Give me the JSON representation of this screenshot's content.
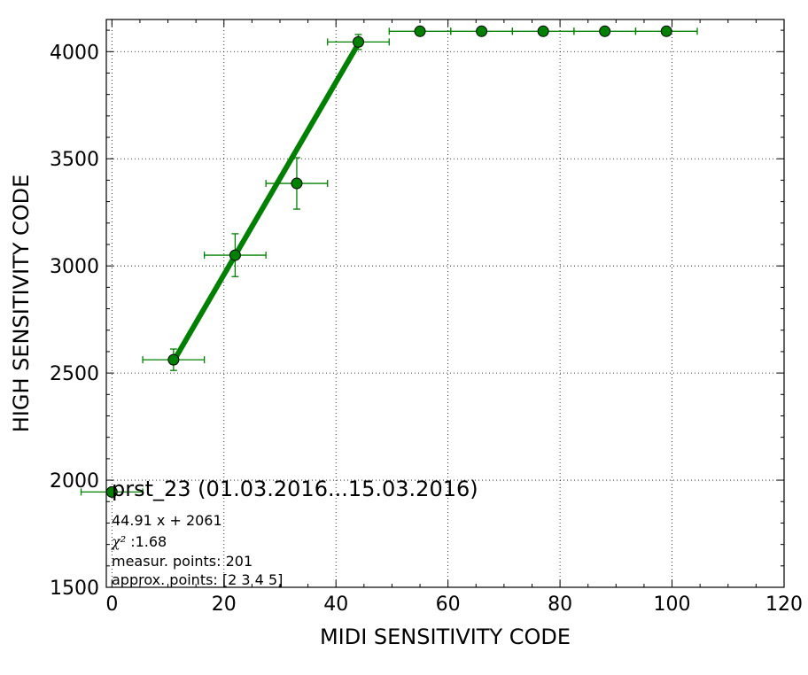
{
  "chart_data": {
    "type": "scatter",
    "xlabel": "MIDI SENSITIVITY CODE",
    "ylabel": "HIGH SENSITIVITY CODE",
    "xlim": [
      -1,
      120
    ],
    "ylim": [
      1500,
      4150
    ],
    "xticks": [
      0,
      20,
      40,
      60,
      80,
      100,
      120
    ],
    "yticks": [
      1500,
      2000,
      2500,
      3000,
      3500,
      4000
    ],
    "grid": true,
    "color": "#008000",
    "points": [
      {
        "x": 0,
        "y": 1945,
        "xerr": 5.5,
        "yerr": 0
      },
      {
        "x": 11,
        "y": 2562,
        "xerr": 5.5,
        "yerr": 50
      },
      {
        "x": 22,
        "y": 3050,
        "xerr": 5.5,
        "yerr": 100
      },
      {
        "x": 33,
        "y": 3385,
        "xerr": 5.5,
        "yerr": 120
      },
      {
        "x": 44,
        "y": 4045,
        "xerr": 5.5,
        "yerr": 35
      },
      {
        "x": 55,
        "y": 4095,
        "xerr": 5.5,
        "yerr": 0
      },
      {
        "x": 66,
        "y": 4095,
        "xerr": 5.5,
        "yerr": 0
      },
      {
        "x": 77,
        "y": 4095,
        "xerr": 5.5,
        "yerr": 0
      },
      {
        "x": 88,
        "y": 4095,
        "xerr": 5.5,
        "yerr": 0
      },
      {
        "x": 99,
        "y": 4095,
        "xerr": 5.5,
        "yerr": 0
      }
    ],
    "fit_line": {
      "slope": 44.91,
      "intercept": 2061,
      "x_range": [
        11,
        44
      ]
    },
    "annotation": {
      "title": "prst_23 (01.03.2016...15.03.2016)",
      "equation": "44.91 x + 2061",
      "chi_symbol": "χ²",
      "chi_value": " :1.68",
      "measur_points": "measur. points: 201",
      "approx_points": "approx. points: [2 3 4 5]"
    }
  }
}
